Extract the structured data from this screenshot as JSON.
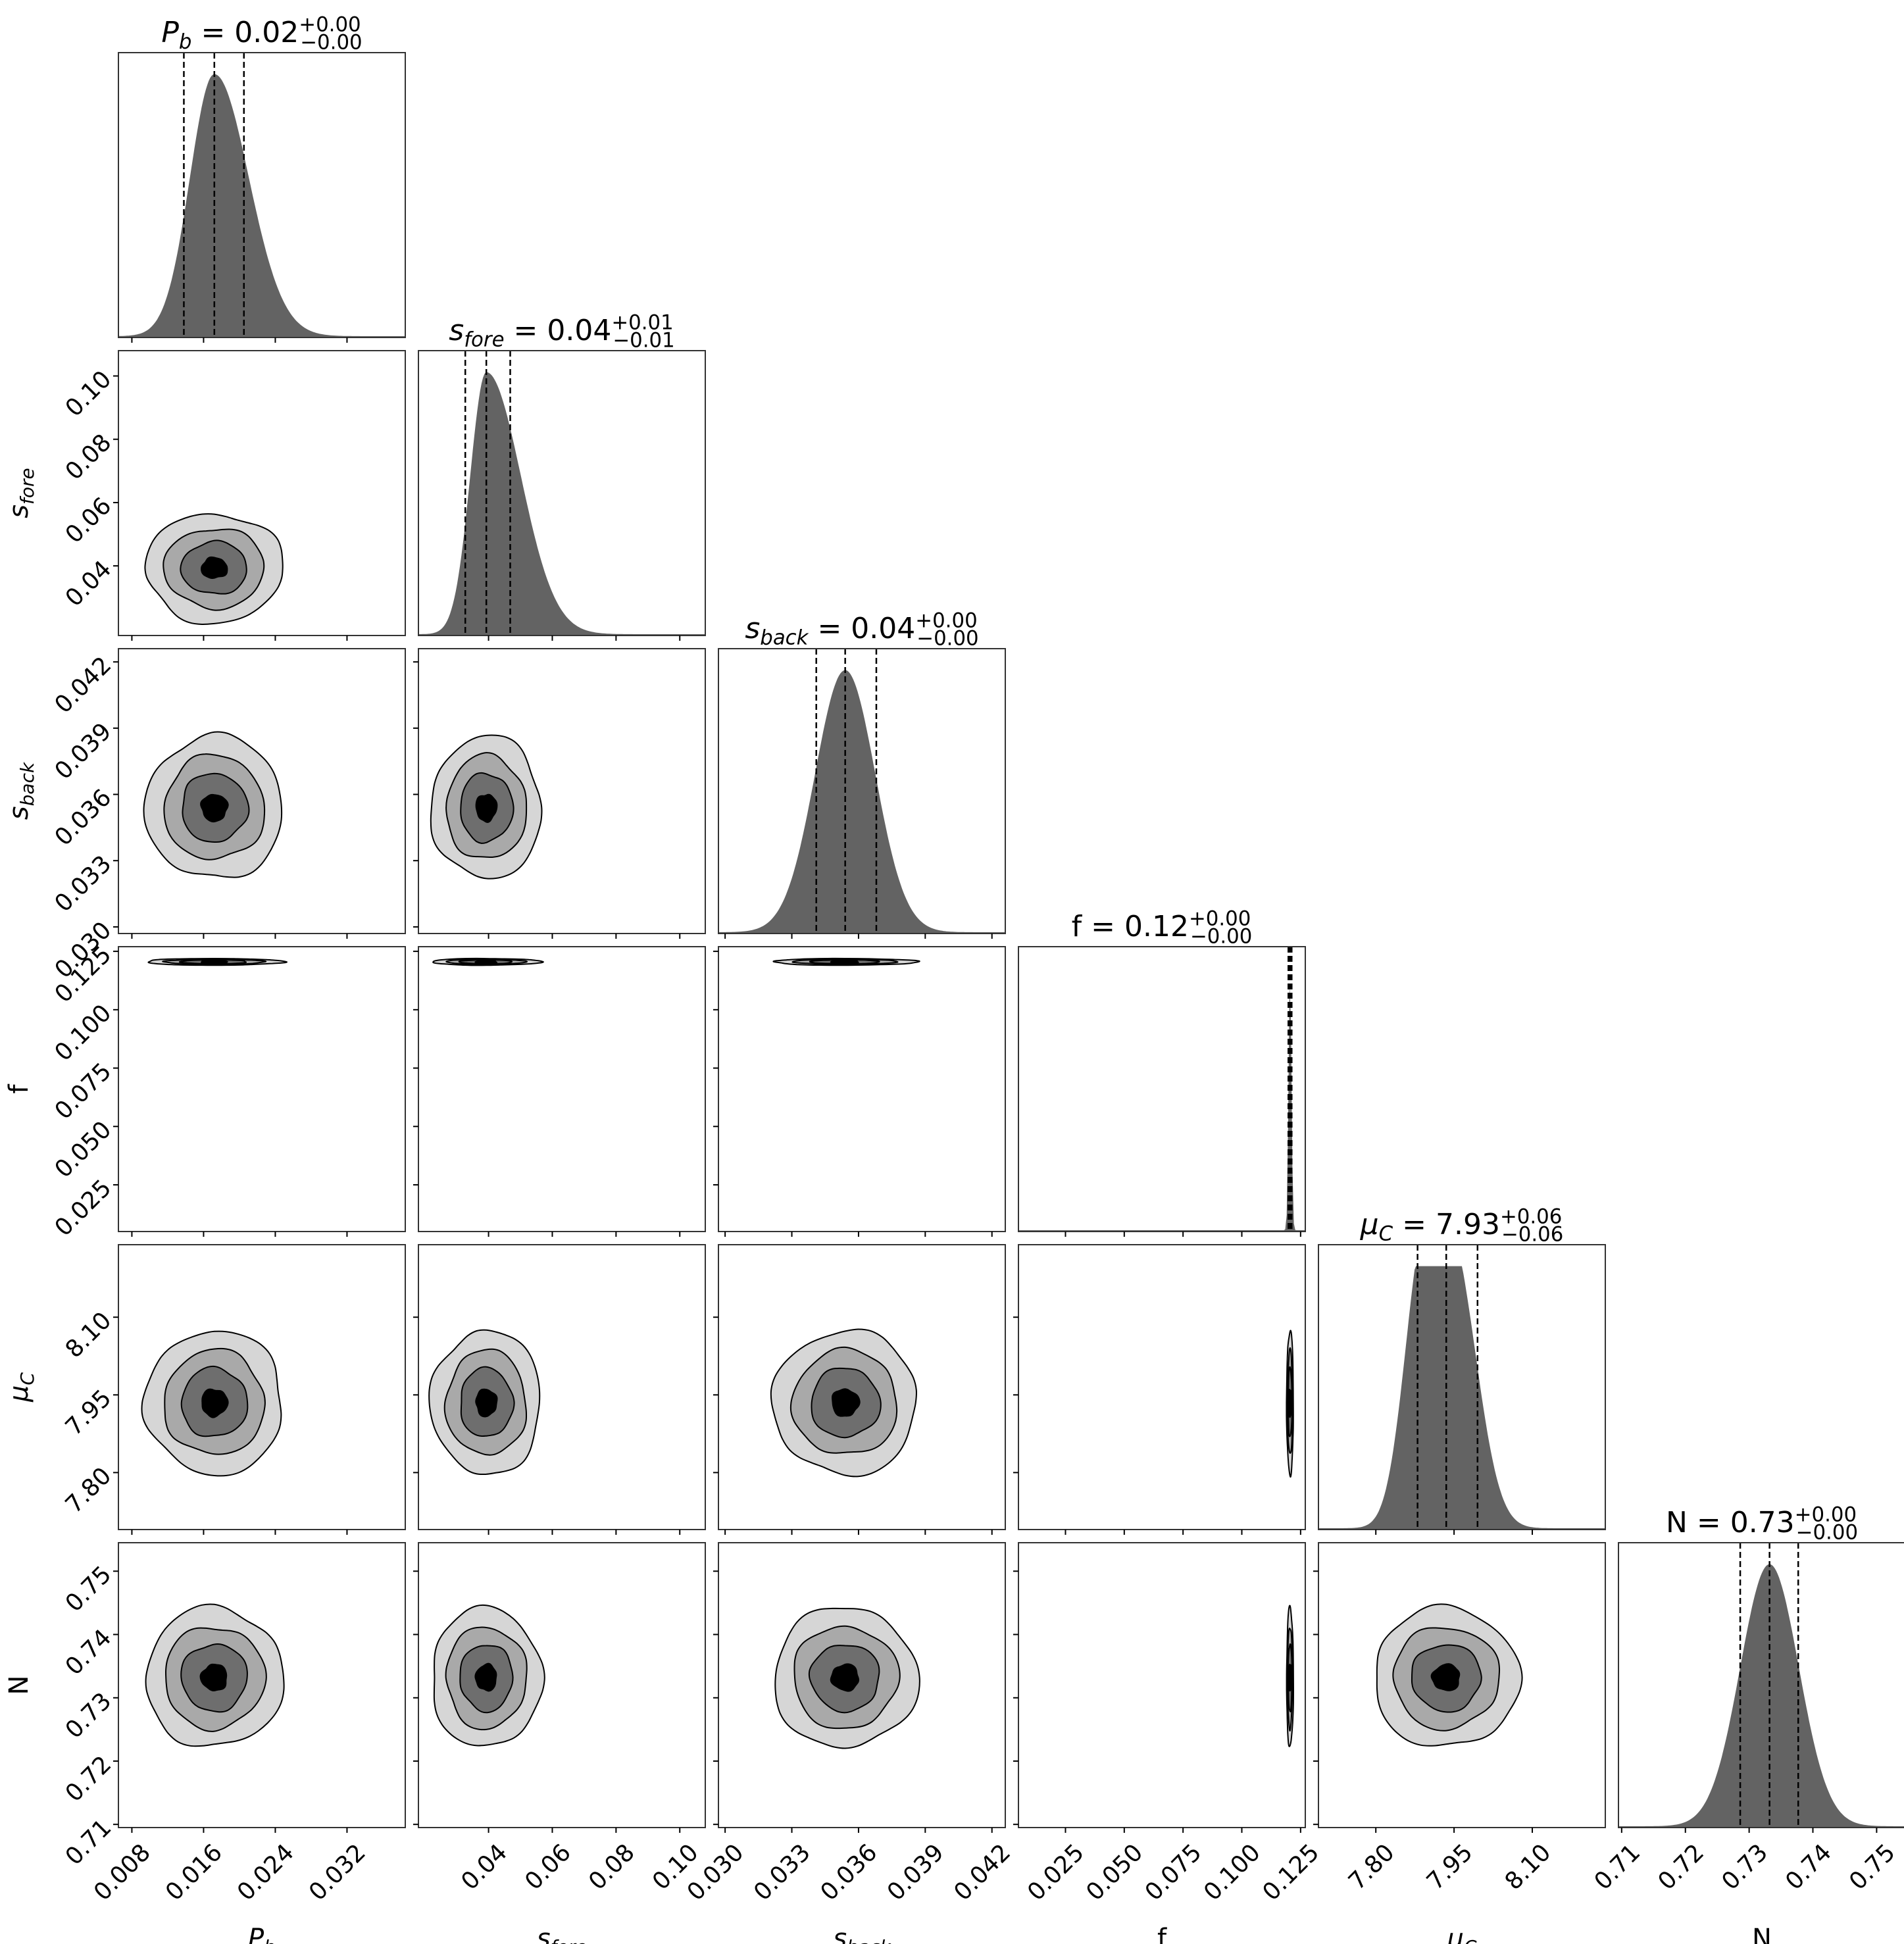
{
  "chart_data": {
    "type": "corner",
    "parameters": [
      {
        "symbol": "P",
        "sub": "b",
        "italic": true,
        "median": "0.02",
        "plus": "+0.00",
        "minus": "−0.00",
        "range": [
          0.0065,
          0.0385
        ],
        "ticks": [
          "0.008",
          "0.016",
          "0.024",
          "0.032"
        ],
        "tick_values": [
          0.008,
          0.016,
          0.024,
          0.032
        ],
        "mean": 0.0172,
        "sigma": 0.0032,
        "q16": 0.0138,
        "q50": 0.0172,
        "q84": 0.0205
      },
      {
        "symbol": "s",
        "sub": "fore",
        "italic": true,
        "median": "0.04",
        "plus": "+0.01",
        "minus": "−0.01",
        "range": [
          0.018,
          0.108
        ],
        "ticks": [
          "0.04",
          "0.06",
          "0.08",
          "0.10"
        ],
        "tick_values": [
          0.04,
          0.06,
          0.08,
          0.1
        ],
        "mean": 0.0393,
        "sigma": 0.0072,
        "q16": 0.0327,
        "q50": 0.0393,
        "q84": 0.0468
      },
      {
        "symbol": "s",
        "sub": "back",
        "italic": true,
        "median": "0.04",
        "plus": "+0.00",
        "minus": "−0.00",
        "range": [
          0.0297,
          0.0426
        ],
        "ticks": [
          "0.030",
          "0.033",
          "0.036",
          "0.039",
          "0.042"
        ],
        "tick_values": [
          0.03,
          0.033,
          0.036,
          0.039,
          0.042
        ],
        "mean": 0.0354,
        "sigma": 0.00135,
        "q16": 0.0341,
        "q50": 0.0354,
        "q84": 0.0368
      },
      {
        "symbol": "f",
        "sub": "",
        "italic": false,
        "median": "0.12",
        "plus": "+0.00",
        "minus": "−0.00",
        "range": [
          0.005,
          0.127
        ],
        "ticks": [
          "0.025",
          "0.050",
          "0.075",
          "0.100",
          "0.125"
        ],
        "tick_values": [
          0.025,
          0.05,
          0.075,
          0.1,
          0.125
        ],
        "mean": 0.1205,
        "sigma": 0.0006,
        "q16": 0.1198,
        "q50": 0.1205,
        "q84": 0.1212
      },
      {
        "symbol": "μ",
        "sub": "C",
        "italic": true,
        "median": "7.93",
        "plus": "+0.06",
        "minus": "−0.06",
        "range": [
          7.69,
          8.24
        ],
        "ticks": [
          "7.80",
          "7.95",
          "8.10"
        ],
        "tick_values": [
          7.8,
          7.95,
          8.1
        ],
        "mean": 7.935,
        "sigma": 0.058,
        "q16": 7.88,
        "q50": 7.935,
        "q84": 7.995
      },
      {
        "symbol": "N",
        "sub": "",
        "italic": false,
        "median": "0.73",
        "plus": "+0.00",
        "minus": "−0.00",
        "range": [
          0.7095,
          0.7545
        ],
        "ticks": [
          "0.71",
          "0.72",
          "0.73",
          "0.74",
          "0.75"
        ],
        "tick_values": [
          0.71,
          0.72,
          0.73,
          0.74,
          0.75
        ],
        "mean": 0.7332,
        "sigma": 0.0046,
        "q16": 0.7286,
        "q50": 0.7332,
        "q84": 0.7377
      }
    ],
    "contour_levels": 4,
    "fill_colors": [
      "#d6d6d6",
      "#a9a9a9",
      "#6e6e6e",
      "#000000"
    ],
    "histogram_color": "#636363",
    "quantile_line_style": "dashed"
  }
}
